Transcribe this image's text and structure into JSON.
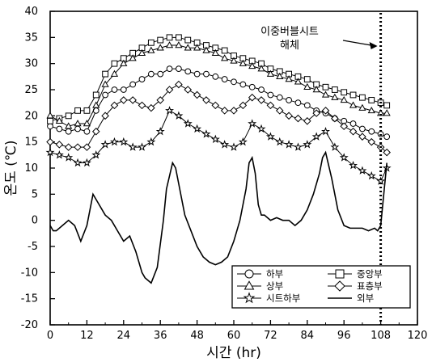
{
  "chart_data": {
    "type": "line",
    "xlabel": "시간 (hr)",
    "ylabel": "온도 (℃)",
    "xlim": [
      0,
      120
    ],
    "ylim": [
      -20,
      40
    ],
    "x_ticks": [
      0,
      12,
      24,
      36,
      48,
      60,
      72,
      84,
      96,
      108,
      120
    ],
    "y_ticks": [
      -20,
      -15,
      -10,
      -5,
      0,
      5,
      10,
      15,
      20,
      25,
      30,
      35,
      40
    ],
    "grid": false,
    "legend_position": "bottom-right",
    "annotation": {
      "text_line1": "이중버블시트",
      "text_line2": "해체",
      "x": 108
    },
    "series": [
      {
        "name": "하부",
        "marker": "circle",
        "x": [
          0,
          3,
          6,
          9,
          12,
          15,
          18,
          21,
          24,
          27,
          30,
          33,
          36,
          39,
          42,
          45,
          48,
          51,
          54,
          57,
          60,
          63,
          66,
          69,
          72,
          75,
          78,
          81,
          84,
          87,
          90,
          93,
          96,
          99,
          102,
          105,
          108,
          110
        ],
        "values": [
          18,
          17.5,
          17,
          17.5,
          17,
          21,
          24,
          25,
          25,
          26,
          27,
          28,
          28,
          29,
          29,
          28.5,
          28,
          28,
          27.5,
          27,
          26.5,
          26,
          25.5,
          25,
          24,
          23.5,
          23,
          22.5,
          22,
          21,
          20.5,
          19.5,
          19,
          18.5,
          17.5,
          17,
          16.5,
          16
        ]
      },
      {
        "name": "중앙부",
        "marker": "square",
        "x": [
          0,
          3,
          6,
          9,
          12,
          15,
          18,
          21,
          24,
          27,
          30,
          33,
          36,
          39,
          42,
          45,
          48,
          51,
          54,
          57,
          60,
          63,
          66,
          69,
          72,
          75,
          78,
          81,
          84,
          87,
          90,
          93,
          96,
          99,
          102,
          105,
          108,
          110
        ],
        "values": [
          19,
          19.5,
          20,
          21,
          21,
          24,
          28,
          30,
          31,
          32,
          33,
          34,
          34.5,
          35,
          35,
          34.5,
          34,
          33.5,
          33,
          32.5,
          31.5,
          31,
          30.5,
          30,
          29,
          28.5,
          28,
          27.5,
          27,
          26,
          25.5,
          25,
          24.5,
          24,
          23.5,
          23,
          22.5,
          22
        ]
      },
      {
        "name": "상부",
        "marker": "triangle",
        "x": [
          0,
          3,
          6,
          9,
          12,
          15,
          18,
          21,
          24,
          27,
          30,
          33,
          36,
          39,
          42,
          45,
          48,
          51,
          54,
          57,
          60,
          63,
          66,
          69,
          72,
          75,
          78,
          81,
          84,
          87,
          90,
          93,
          96,
          99,
          102,
          105,
          108,
          110
        ],
        "values": [
          20,
          19,
          18,
          18.5,
          18.5,
          22,
          26,
          28,
          30,
          31,
          32,
          32.5,
          33,
          33.5,
          33.5,
          33,
          33,
          32.5,
          32,
          31,
          30.5,
          30,
          29.5,
          29,
          28,
          27.5,
          27,
          26.5,
          25.5,
          25,
          24,
          23.5,
          23,
          22,
          21.5,
          21,
          20.5,
          20.5
        ]
      },
      {
        "name": "표층부",
        "marker": "diamond",
        "x": [
          0,
          3,
          6,
          9,
          12,
          15,
          18,
          21,
          24,
          27,
          30,
          33,
          36,
          39,
          42,
          45,
          48,
          51,
          54,
          57,
          60,
          63,
          66,
          69,
          72,
          75,
          78,
          81,
          84,
          87,
          90,
          93,
          96,
          99,
          102,
          105,
          108,
          110
        ],
        "values": [
          15,
          14.5,
          14,
          14,
          14,
          17,
          20,
          22,
          23,
          23,
          22,
          21.5,
          23,
          25,
          26,
          25,
          24,
          23,
          22,
          21,
          21,
          22,
          23.5,
          23,
          22,
          21,
          20,
          19.5,
          19,
          20.5,
          21,
          19.5,
          18,
          17,
          16,
          15,
          14,
          13
        ]
      },
      {
        "name": "시트하부",
        "marker": "star",
        "x": [
          0,
          3,
          6,
          9,
          12,
          15,
          18,
          21,
          24,
          27,
          30,
          33,
          36,
          39,
          42,
          45,
          48,
          51,
          54,
          57,
          60,
          63,
          66,
          69,
          72,
          75,
          78,
          81,
          84,
          87,
          90,
          93,
          96,
          99,
          102,
          105,
          108,
          110
        ],
        "values": [
          13,
          12.5,
          12,
          11,
          11,
          12.5,
          14.5,
          15,
          15,
          14,
          14,
          15,
          17,
          21,
          20,
          18.5,
          17.5,
          16.5,
          15.5,
          14.5,
          14,
          15,
          18.5,
          17.5,
          16,
          15,
          14.5,
          14,
          14.5,
          16,
          17,
          14,
          12,
          10.5,
          9.5,
          8.5,
          7.5,
          10
        ]
      },
      {
        "name": "외부",
        "marker": "none",
        "x": [
          0,
          1,
          2,
          4,
          6,
          8,
          10,
          12,
          13,
          14,
          16,
          18,
          20,
          22,
          24,
          26,
          28,
          30,
          31,
          33,
          35,
          37,
          38,
          40,
          41,
          42,
          44,
          46,
          48,
          50,
          52,
          54,
          56,
          58,
          60,
          62,
          64,
          65,
          66,
          67,
          68,
          69,
          70,
          72,
          74,
          76,
          78,
          80,
          82,
          84,
          86,
          88,
          89,
          90,
          92,
          94,
          96,
          98,
          100,
          102,
          104,
          106,
          107,
          108,
          110
        ],
        "values": [
          -1,
          -2,
          -2,
          -1,
          0,
          -1,
          -4,
          -1,
          2,
          5,
          3,
          1,
          0,
          -2,
          -4,
          -3,
          -6,
          -10,
          -11,
          -12,
          -9,
          0,
          6,
          11,
          10,
          7,
          1,
          -2,
          -5,
          -7,
          -8,
          -8.5,
          -8,
          -7,
          -4,
          0,
          6,
          11,
          12,
          9,
          3,
          1,
          1,
          0,
          0.5,
          0,
          0,
          -1,
          0,
          2,
          5,
          9,
          12,
          13,
          8,
          2,
          -1,
          -1.5,
          -1.5,
          -1.5,
          -2,
          -1.5,
          -2,
          -1,
          11
        ]
      }
    ]
  }
}
